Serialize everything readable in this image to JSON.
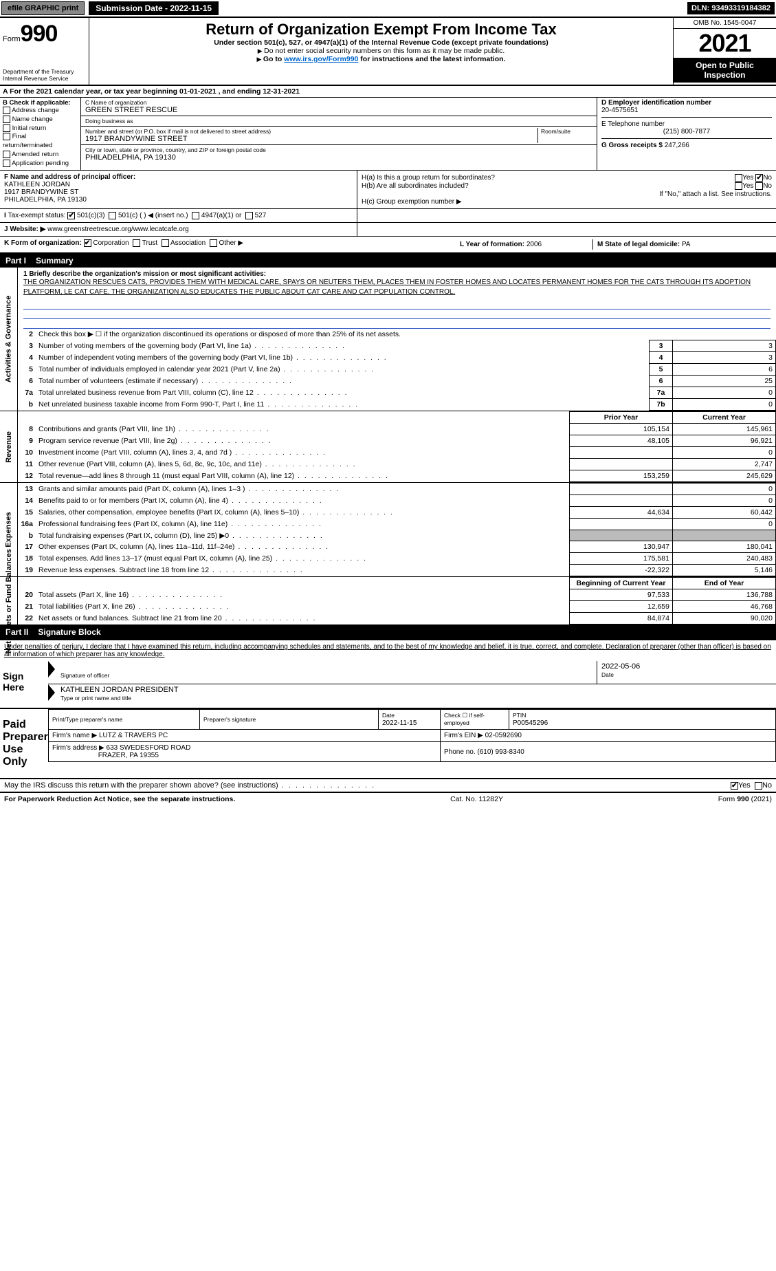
{
  "topbar": {
    "efile": "efile GRAPHIC print",
    "submission": "Submission Date - 2022-11-15",
    "dln": "DLN: 93493319184382"
  },
  "header": {
    "form_label": "Form",
    "form_number": "990",
    "title": "Return of Organization Exempt From Income Tax",
    "subtitle": "Under section 501(c), 527, or 4947(a)(1) of the Internal Revenue Code (except private foundations)",
    "note1": "Do not enter social security numbers on this form as it may be made public.",
    "note2_pre": "Go to ",
    "note2_link": "www.irs.gov/Form990",
    "note2_post": " for instructions and the latest information.",
    "dept": "Department of the Treasury",
    "irs": "Internal Revenue Service",
    "omb": "OMB No. 1545-0047",
    "year": "2021",
    "inspect": "Open to Public Inspection"
  },
  "row_a": "For the 2021 calendar year, or tax year beginning 01-01-2021    , and ending 12-31-2021",
  "col_b": {
    "title": "B Check if applicable:",
    "opts": [
      "Address change",
      "Name change",
      "Initial return",
      "Final return/terminated",
      "Amended return",
      "Application pending"
    ]
  },
  "col_c": {
    "name_label": "C Name of organization",
    "name": "GREEN STREET RESCUE",
    "dba_label": "Doing business as",
    "dba": "",
    "street_label": "Number and street (or P.O. box if mail is not delivered to street address)",
    "room_label": "Room/suite",
    "street": "1917 BRANDYWINE STREET",
    "city_label": "City or town, state or province, country, and ZIP or foreign postal code",
    "city": "PHILADELPHIA, PA  19130"
  },
  "col_d": {
    "ein_label": "D Employer identification number",
    "ein": "20-4575651",
    "tel_label": "E Telephone number",
    "tel": "(215) 800-7877",
    "gross_label": "G Gross receipts $",
    "gross": "247,266"
  },
  "col_f": {
    "label": "F  Name and address of principal officer:",
    "name": "KATHLEEN JORDAN",
    "street": "1917 BRANDYWINE ST",
    "city": "PHILADELPHIA, PA  19130"
  },
  "col_h": {
    "ha": "H(a)  Is this a group return for subordinates?",
    "hb": "H(b)  Are all subordinates included?",
    "hb_note": "If \"No,\" attach a list. See instructions.",
    "hc": "H(c)  Group exemption number ▶",
    "yes": "Yes",
    "no": "No"
  },
  "row_i": {
    "label": "Tax-exempt status:",
    "opts": [
      "501(c)(3)",
      "501(c) (  ) ◀ (insert no.)",
      "4947(a)(1) or",
      "527"
    ]
  },
  "row_j": {
    "label": "Website: ▶",
    "val": "www.greenstreetrescue.org/www.lecatcafe.org"
  },
  "row_k": {
    "label": "K Form of organization:",
    "opts": [
      "Corporation",
      "Trust",
      "Association",
      "Other ▶"
    ],
    "l_label": "L Year of formation:",
    "l_val": "2006",
    "m_label": "M State of legal domicile:",
    "m_val": "PA"
  },
  "part1": {
    "pt": "Part I",
    "title": "Summary"
  },
  "mission": {
    "label": "1  Briefly describe the organization's mission or most significant activities:",
    "text": "THE ORGANIZATION RESCUES CATS, PROVIDES THEM WITH MEDICAL CARE, SPAYS OR NEUTERS THEM, PLACES THEM IN FOSTER HOMES AND LOCATES PERMANENT HOMES FOR THE CATS THROUGH ITS ADOPTION PLATFORM, LE CAT CAFE. THE ORGANIZATION ALSO EDUCATES THE PUBLIC ABOUT CAT CARE AND CAT POPULATION CONTROL."
  },
  "gov_rows": [
    {
      "n": "2",
      "desc": "Check this box ▶ ☐  if the organization discontinued its operations or disposed of more than 25% of its net assets.",
      "box": "",
      "val": ""
    },
    {
      "n": "3",
      "desc": "Number of voting members of the governing body (Part VI, line 1a)",
      "box": "3",
      "val": "3"
    },
    {
      "n": "4",
      "desc": "Number of independent voting members of the governing body (Part VI, line 1b)",
      "box": "4",
      "val": "3"
    },
    {
      "n": "5",
      "desc": "Total number of individuals employed in calendar year 2021 (Part V, line 2a)",
      "box": "5",
      "val": "6"
    },
    {
      "n": "6",
      "desc": "Total number of volunteers (estimate if necessary)",
      "box": "6",
      "val": "25"
    },
    {
      "n": "7a",
      "desc": "Total unrelated business revenue from Part VIII, column (C), line 12",
      "box": "7a",
      "val": "0"
    },
    {
      "n": "b",
      "desc": "Net unrelated business taxable income from Form 990-T, Part I, line 11",
      "box": "7b",
      "val": "0"
    }
  ],
  "col_hdr": {
    "prior": "Prior Year",
    "current": "Current Year"
  },
  "rev_rows": [
    {
      "n": "8",
      "desc": "Contributions and grants (Part VIII, line 1h)",
      "p": "105,154",
      "c": "145,961"
    },
    {
      "n": "9",
      "desc": "Program service revenue (Part VIII, line 2g)",
      "p": "48,105",
      "c": "96,921"
    },
    {
      "n": "10",
      "desc": "Investment income (Part VIII, column (A), lines 3, 4, and 7d )",
      "p": "",
      "c": "0"
    },
    {
      "n": "11",
      "desc": "Other revenue (Part VIII, column (A), lines 5, 6d, 8c, 9c, 10c, and 11e)",
      "p": "",
      "c": "2,747"
    },
    {
      "n": "12",
      "desc": "Total revenue—add lines 8 through 11 (must equal Part VIII, column (A), line 12)",
      "p": "153,259",
      "c": "245,629"
    }
  ],
  "exp_rows": [
    {
      "n": "13",
      "desc": "Grants and similar amounts paid (Part IX, column (A), lines 1–3 )",
      "p": "",
      "c": "0"
    },
    {
      "n": "14",
      "desc": "Benefits paid to or for members (Part IX, column (A), line 4)",
      "p": "",
      "c": "0"
    },
    {
      "n": "15",
      "desc": "Salaries, other compensation, employee benefits (Part IX, column (A), lines 5–10)",
      "p": "44,634",
      "c": "60,442"
    },
    {
      "n": "16a",
      "desc": "Professional fundraising fees (Part IX, column (A), line 11e)",
      "p": "",
      "c": "0"
    },
    {
      "n": "b",
      "desc": "Total fundraising expenses (Part IX, column (D), line 25) ▶0",
      "p": "shade",
      "c": "shade"
    },
    {
      "n": "17",
      "desc": "Other expenses (Part IX, column (A), lines 11a–11d, 11f–24e)",
      "p": "130,947",
      "c": "180,041"
    },
    {
      "n": "18",
      "desc": "Total expenses. Add lines 13–17 (must equal Part IX, column (A), line 25)",
      "p": "175,581",
      "c": "240,483"
    },
    {
      "n": "19",
      "desc": "Revenue less expenses. Subtract line 18 from line 12",
      "p": "-22,322",
      "c": "5,146"
    }
  ],
  "na_hdr": {
    "begin": "Beginning of Current Year",
    "end": "End of Year"
  },
  "na_rows": [
    {
      "n": "20",
      "desc": "Total assets (Part X, line 16)",
      "p": "97,533",
      "c": "136,788"
    },
    {
      "n": "21",
      "desc": "Total liabilities (Part X, line 26)",
      "p": "12,659",
      "c": "46,768"
    },
    {
      "n": "22",
      "desc": "Net assets or fund balances. Subtract line 21 from line 20",
      "p": "84,874",
      "c": "90,020"
    }
  ],
  "side_labels": {
    "gov": "Activities & Governance",
    "rev": "Revenue",
    "exp": "Expenses",
    "na": "Net Assets or Fund Balances"
  },
  "part2": {
    "pt": "Part II",
    "title": "Signature Block"
  },
  "penalty": "Under penalties of perjury, I declare that I have examined this return, including accompanying schedules and statements, and to the best of my knowledge and belief, it is true, correct, and complete. Declaration of preparer (other than officer) is based on all information of which preparer has any knowledge.",
  "sign": {
    "here": "Sign Here",
    "sig_label": "Signature of officer",
    "date_label": "Date",
    "date": "2022-05-06",
    "name": "KATHLEEN JORDAN  PRESIDENT",
    "name_label": "Type or print name and title"
  },
  "paid": {
    "title": "Paid Preparer Use Only",
    "h1": "Print/Type preparer's name",
    "h2": "Preparer's signature",
    "h3": "Date",
    "h4": "Check ☐ if self-employed",
    "h5": "PTIN",
    "date": "2022-11-15",
    "ptin": "P00545296",
    "firm_label": "Firm's name    ▶",
    "firm": "LUTZ & TRAVERS PC",
    "ein_label": "Firm's EIN ▶",
    "ein": "02-0592690",
    "addr_label": "Firm's address ▶",
    "addr1": "633 SWEDESFORD ROAD",
    "addr2": "FRAZER, PA  19355",
    "phone_label": "Phone no.",
    "phone": "(610) 993-8340"
  },
  "discuss": {
    "q": "May the IRS discuss this return with the preparer shown above? (see instructions)",
    "yes": "Yes",
    "no": "No"
  },
  "footer": {
    "left": "For Paperwork Reduction Act Notice, see the separate instructions.",
    "mid": "Cat. No. 11282Y",
    "right": "Form 990 (2021)"
  }
}
